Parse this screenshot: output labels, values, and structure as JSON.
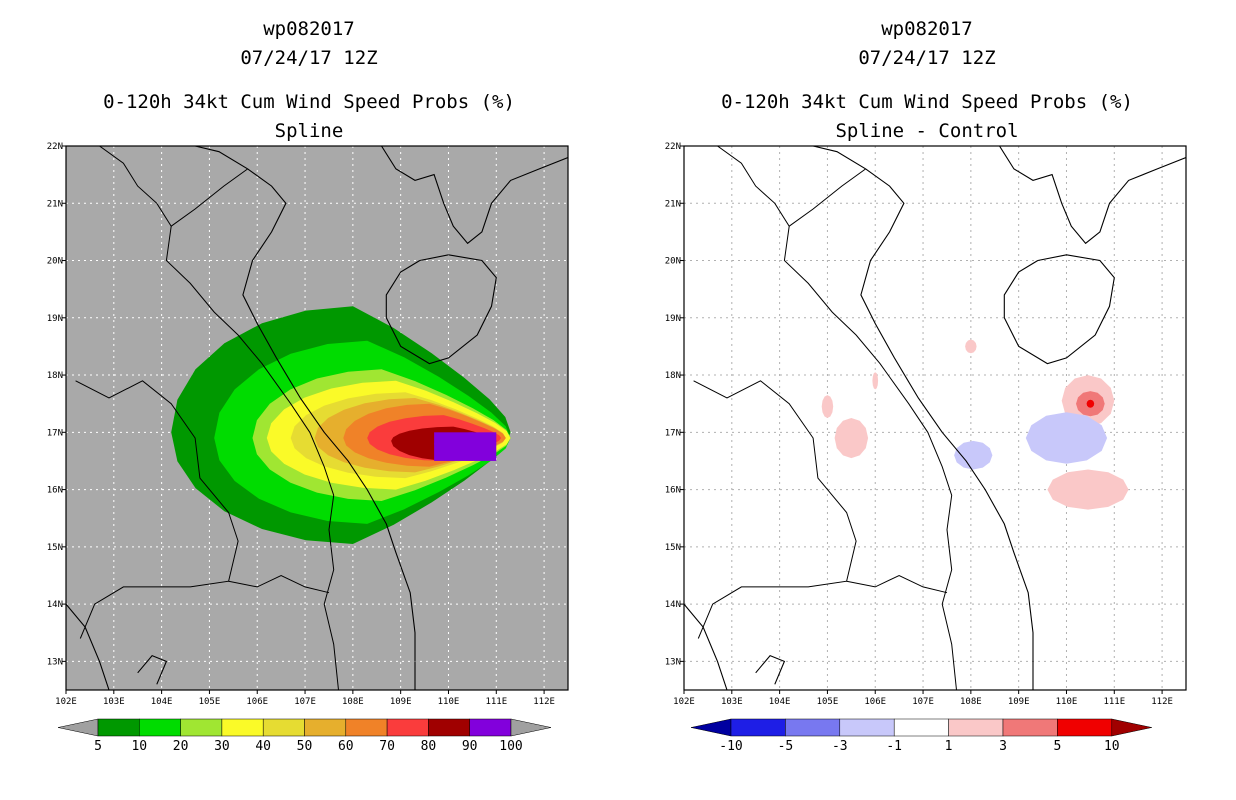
{
  "left_panel": {
    "title_line1": "wp082017",
    "title_line2": "07/24/17 12Z",
    "title_line3": "0-120h 34kt Cum Wind Speed Probs (%)",
    "title_line4": "Spline"
  },
  "right_panel": {
    "title_line1": "wp082017",
    "title_line2": "07/24/17 12Z",
    "title_line3": "0-120h 34kt Cum Wind Speed Probs (%)",
    "title_line4": "Spline - Control"
  },
  "colors": {
    "land_background": "#a9a9a9",
    "left_colorbar": [
      "#009800",
      "#00dc00",
      "#a0e632",
      "#fafa28",
      "#e6dc32",
      "#e6af2d",
      "#f08228",
      "#fa3c3c",
      "#a00000",
      "#8200dc"
    ],
    "left_colorbar_ends": "#a0a0a0",
    "right_colorbar": [
      "#0000a0",
      "#1e1ee6",
      "#7878f0",
      "#c8c8fa",
      "#ffffff",
      "#fac8c8",
      "#f07878",
      "#f00000",
      "#a00000"
    ]
  },
  "chart_data": [
    {
      "type": "contour-map",
      "title": "0-120h 34kt Cum Wind Speed Probs (%)",
      "subtitle": "Spline",
      "storm": "wp082017",
      "time": "07/24/17 12Z",
      "x_ticks": [
        "102E",
        "103E",
        "104E",
        "105E",
        "106E",
        "107E",
        "108E",
        "109E",
        "110E",
        "111E",
        "112E"
      ],
      "y_ticks": [
        "13N",
        "14N",
        "15N",
        "16N",
        "17N",
        "18N",
        "19N",
        "20N",
        "21N",
        "22N"
      ],
      "xlim": [
        102,
        112.5
      ],
      "ylim": [
        12.5,
        22
      ],
      "colorbar_levels": [
        "5",
        "10",
        "20",
        "30",
        "40",
        "50",
        "60",
        "70",
        "80",
        "90",
        "100"
      ],
      "contours": [
        {
          "level": 5,
          "center": [
            108.0,
            17.0
          ],
          "lon_west": 104.2,
          "lon_east": 111.3,
          "lat_south": 15.05,
          "lat_north": 19.2
        },
        {
          "level": 10,
          "center": [
            108.3,
            16.9
          ],
          "lon_west": 105.1,
          "lon_east": 111.3,
          "lat_south": 15.4,
          "lat_north": 18.6
        },
        {
          "level": 20,
          "center": [
            108.6,
            16.9
          ],
          "lon_west": 105.9,
          "lon_east": 111.3,
          "lat_south": 15.8,
          "lat_north": 18.1
        },
        {
          "level": 30,
          "center": [
            108.9,
            16.9
          ],
          "lon_west": 106.2,
          "lon_east": 111.3,
          "lat_south": 16.0,
          "lat_north": 17.9
        },
        {
          "level": 40,
          "center": [
            109.1,
            16.9
          ],
          "lon_west": 106.7,
          "lon_east": 111.2,
          "lat_south": 16.2,
          "lat_north": 17.7
        },
        {
          "level": 50,
          "center": [
            109.3,
            16.9
          ],
          "lon_west": 107.2,
          "lon_east": 111.2,
          "lat_south": 16.3,
          "lat_north": 17.6
        },
        {
          "level": 60,
          "center": [
            109.6,
            16.9
          ],
          "lon_west": 107.8,
          "lon_east": 111.2,
          "lat_south": 16.4,
          "lat_north": 17.5
        },
        {
          "level": 70,
          "center": [
            109.9,
            16.9
          ],
          "lon_west": 108.3,
          "lon_east": 111.1,
          "lat_south": 16.5,
          "lat_north": 17.3
        },
        {
          "level": 80,
          "center": [
            110.1,
            16.85
          ],
          "lon_west": 108.8,
          "lon_east": 111.0,
          "lat_south": 16.5,
          "lat_north": 17.1
        },
        {
          "level": 90,
          "center": [
            110.5,
            16.8
          ],
          "lon_west": 109.7,
          "lon_east": 111.0,
          "lat_south": 16.5,
          "lat_north": 17.0
        }
      ]
    },
    {
      "type": "contour-map",
      "title": "0-120h 34kt Cum Wind Speed Probs (%)",
      "subtitle": "Spline - Control",
      "storm": "wp082017",
      "time": "07/24/17 12Z",
      "x_ticks": [
        "102E",
        "103E",
        "104E",
        "105E",
        "106E",
        "107E",
        "108E",
        "109E",
        "110E",
        "111E",
        "112E"
      ],
      "y_ticks": [
        "13N",
        "14N",
        "15N",
        "16N",
        "17N",
        "18N",
        "19N",
        "20N",
        "21N",
        "22N"
      ],
      "xlim": [
        102,
        112.5
      ],
      "ylim": [
        12.5,
        22
      ],
      "colorbar_levels": [
        "-10",
        "-5",
        "-3",
        "-1",
        "1",
        "3",
        "5",
        "10"
      ],
      "anomalies": [
        {
          "sign": "positive",
          "level": 1,
          "center": [
            105.5,
            16.9
          ],
          "radius_lon": 0.35,
          "radius_lat": 0.35
        },
        {
          "sign": "positive",
          "level": 1,
          "center": [
            105.0,
            17.45
          ],
          "radius_lon": 0.12,
          "radius_lat": 0.2
        },
        {
          "sign": "positive",
          "level": 1,
          "center": [
            106.0,
            17.9
          ],
          "radius_lon": 0.06,
          "radius_lat": 0.15
        },
        {
          "sign": "positive",
          "level": 1,
          "center": [
            108.0,
            18.5
          ],
          "radius_lon": 0.12,
          "radius_lat": 0.12
        },
        {
          "sign": "positive",
          "level": 1,
          "center": [
            110.45,
            16.0
          ],
          "radius_lon": 0.85,
          "radius_lat": 0.35
        },
        {
          "sign": "positive",
          "level": 1,
          "center": [
            110.45,
            17.55
          ],
          "radius_lon": 0.55,
          "radius_lat": 0.45
        },
        {
          "sign": "positive",
          "level": 3,
          "center": [
            110.5,
            17.5
          ],
          "radius_lon": 0.3,
          "radius_lat": 0.22
        },
        {
          "sign": "positive",
          "level": 5,
          "center": [
            110.5,
            17.5
          ],
          "radius_lon": 0.08,
          "radius_lat": 0.07
        },
        {
          "sign": "negative",
          "level": -1,
          "center": [
            110.0,
            16.9
          ],
          "radius_lon": 0.85,
          "radius_lat": 0.45
        },
        {
          "sign": "negative",
          "level": -1,
          "center": [
            108.05,
            16.6
          ],
          "radius_lon": 0.4,
          "radius_lat": 0.25
        }
      ]
    }
  ]
}
